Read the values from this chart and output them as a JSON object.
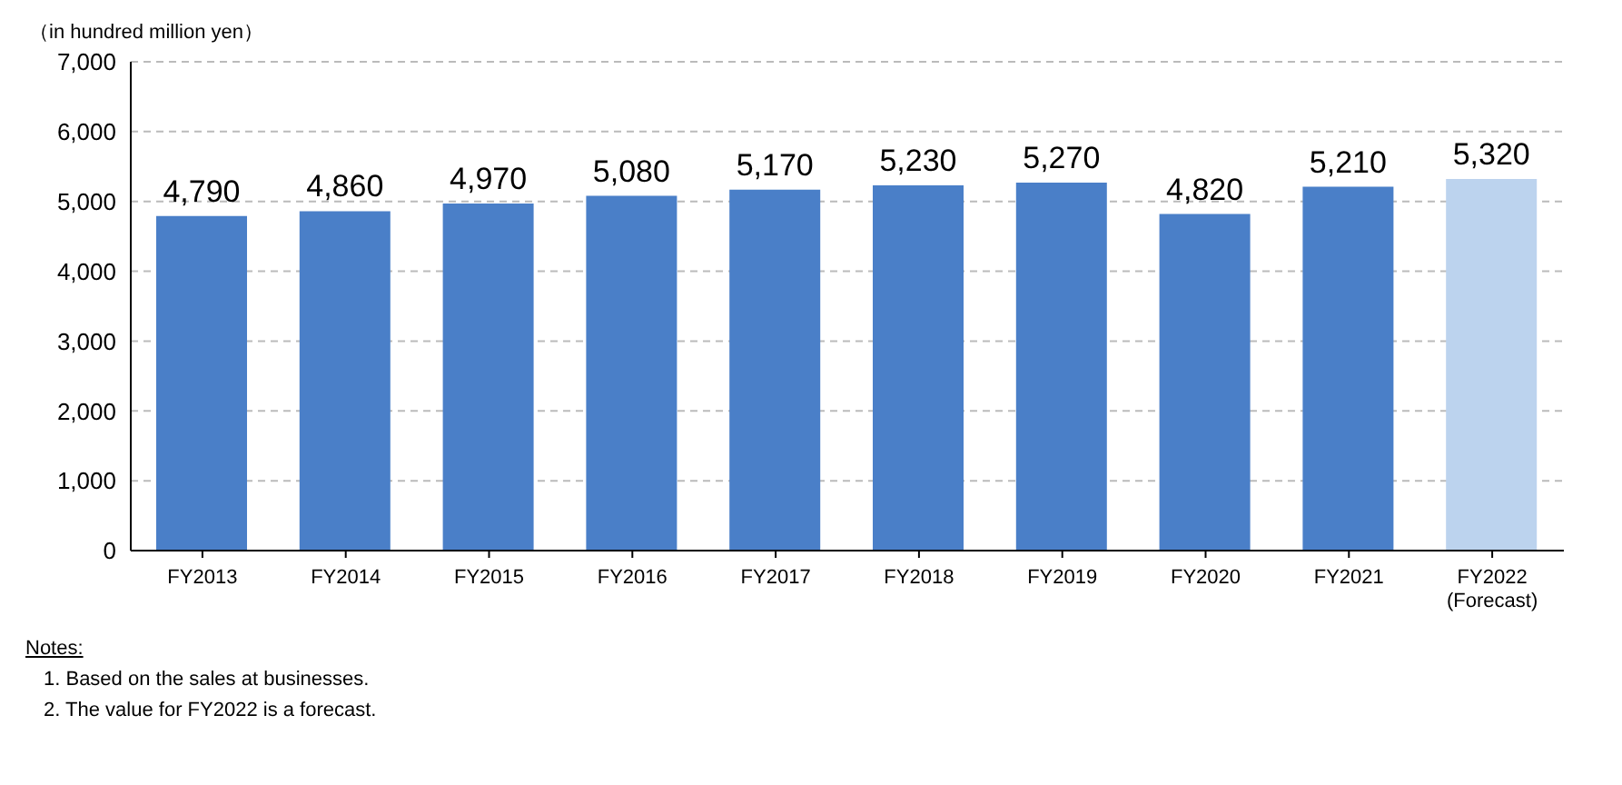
{
  "chart_data": {
    "type": "bar",
    "ylabel": "（in hundred million yen）",
    "categories": [
      "FY2013",
      "FY2014",
      "FY2015",
      "FY2016",
      "FY2017",
      "FY2018",
      "FY2019",
      "FY2020",
      "FY2021",
      "FY2022\n(Forecast)"
    ],
    "values": [
      4790,
      4860,
      4970,
      5080,
      5170,
      5230,
      5270,
      4820,
      5210,
      5320
    ],
    "value_labels": [
      "4,790",
      "4,860",
      "4,970",
      "5,080",
      "5,170",
      "5,230",
      "5,270",
      "4,820",
      "5,210",
      "5,320"
    ],
    "colors": [
      "#4a7fc8",
      "#4a7fc8",
      "#4a7fc8",
      "#4a7fc8",
      "#4a7fc8",
      "#4a7fc8",
      "#4a7fc8",
      "#4a7fc8",
      "#4a7fc8",
      "#bcd3ee"
    ],
    "ylim": [
      0,
      7000
    ],
    "yticks": [
      0,
      {
        "value": 1000,
        "label": "1,000"
      },
      {
        "value": 2000,
        "label": "2,000"
      },
      {
        "value": 3000,
        "label": "3,000"
      },
      {
        "value": 4000,
        "label": "4,000"
      },
      {
        "value": 5000,
        "label": "5,000"
      },
      {
        "value": 6000,
        "label": "6,000"
      },
      {
        "value": 7000,
        "label": "7,000"
      }
    ],
    "grid": "y",
    "annotations": [
      "Notes:",
      "1. Based on the sales at businesses.",
      "2. The value for FY2022 is a forecast."
    ]
  }
}
